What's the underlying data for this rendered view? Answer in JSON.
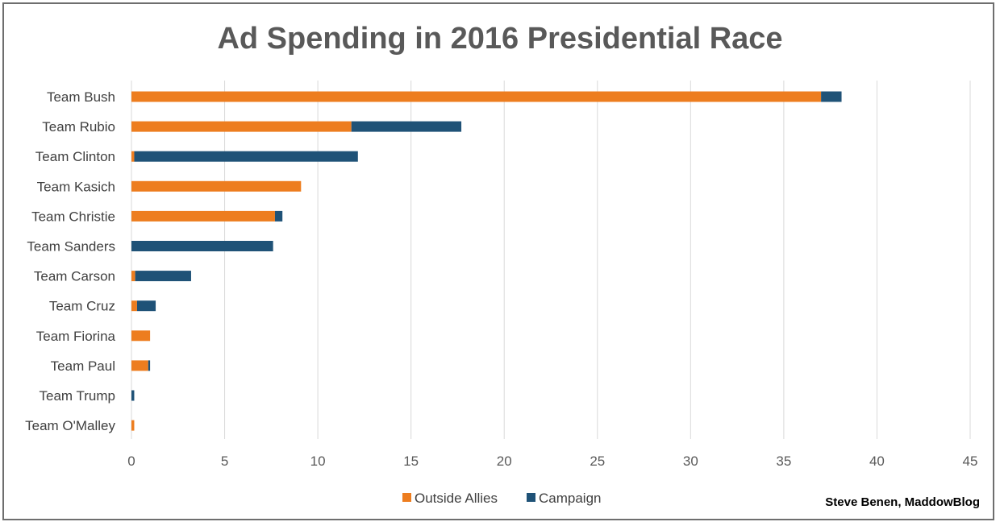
{
  "chart_data": {
    "type": "bar",
    "orientation": "horizontal",
    "stacked": true,
    "title": "Ad Spending in 2016 Presidential Race",
    "categories": [
      "Team Bush",
      "Team Rubio",
      "Team Clinton",
      "Team Kasich",
      "Team Christie",
      "Team Sanders",
      "Team Carson",
      "Team Cruz",
      "Team Fiorina",
      "Team Paul",
      "Team Trump",
      "Team O'Malley"
    ],
    "series": [
      {
        "name": "Outside Allies",
        "color": "#ed7d1f",
        "values": [
          37.0,
          11.8,
          0.15,
          9.1,
          7.7,
          0.0,
          0.2,
          0.3,
          1.0,
          0.9,
          0.0,
          0.15
        ]
      },
      {
        "name": "Campaign",
        "color": "#1f5277",
        "values": [
          1.1,
          5.9,
          12.0,
          0.0,
          0.4,
          7.6,
          3.0,
          1.0,
          0.0,
          0.1,
          0.15,
          0.0
        ]
      }
    ],
    "xlim": [
      0,
      45
    ],
    "xticks": [
      "0",
      "5",
      "10",
      "15",
      "20",
      "25",
      "30",
      "35",
      "40",
      "45"
    ],
    "grid": true,
    "legend_position": "bottom",
    "credit": "Steve Benen, MaddowBlog"
  }
}
